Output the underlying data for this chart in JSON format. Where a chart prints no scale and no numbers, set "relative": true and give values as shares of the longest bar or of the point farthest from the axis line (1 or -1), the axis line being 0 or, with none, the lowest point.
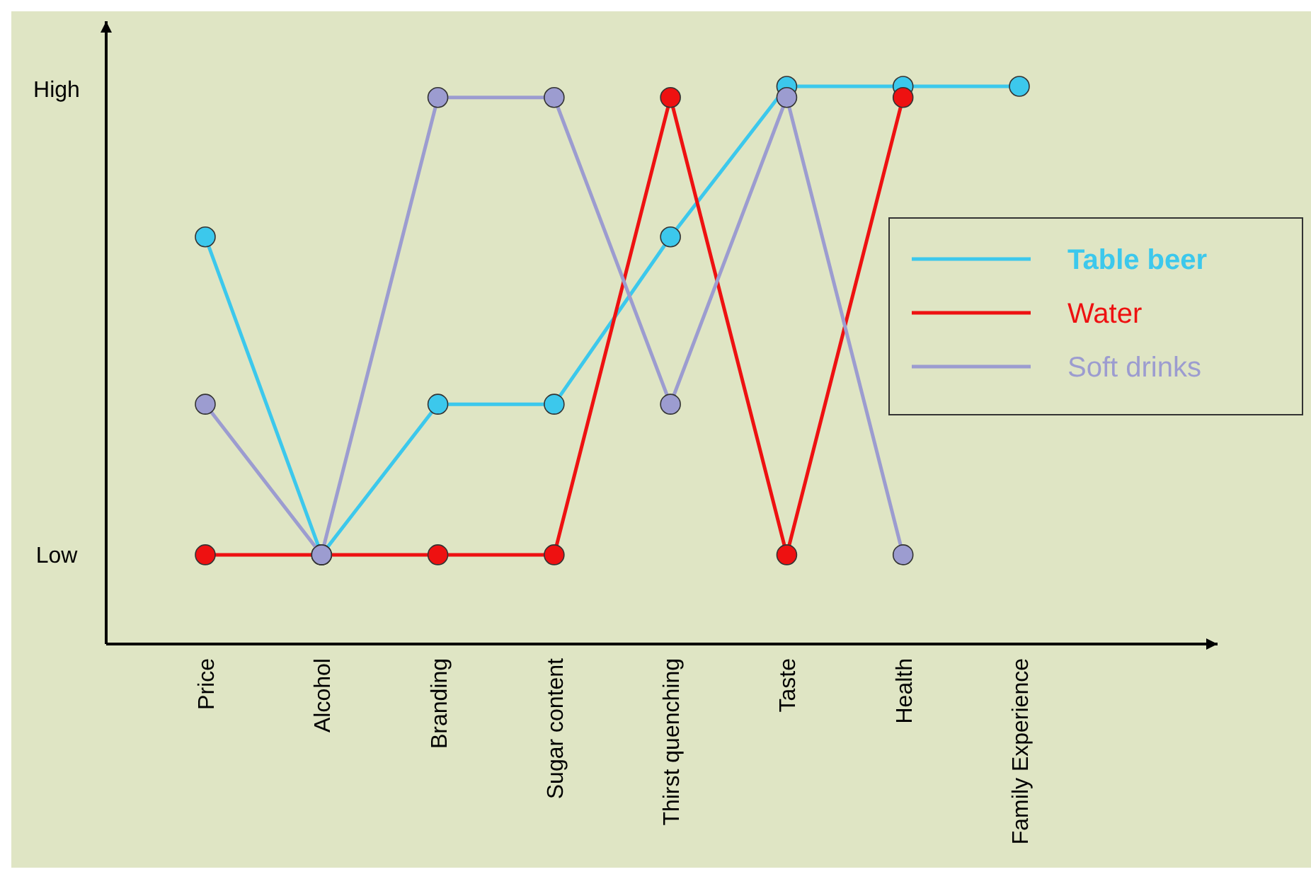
{
  "chart_data": {
    "type": "line",
    "relative": true,
    "categories": [
      "Price",
      "Alcohol",
      "Branding",
      "Sugar content",
      "Thirst quenching",
      "Taste",
      "Health",
      "Family Experience"
    ],
    "series": [
      {
        "name": "Table beer",
        "color": "#3cc8ec",
        "values": [
          0.73,
          0.16,
          0.43,
          0.43,
          0.73,
          1,
          1,
          1
        ]
      },
      {
        "name": "Water",
        "color": "#ee1111",
        "values": [
          0.16,
          0.16,
          0.16,
          0.16,
          0.98,
          0.16,
          0.98,
          null
        ]
      },
      {
        "name": "Soft drinks",
        "color": "#9c9cd0",
        "values": [
          0.43,
          0.16,
          0.98,
          0.98,
          0.43,
          0.98,
          0.16,
          null
        ]
      }
    ],
    "annotations": [
      "High",
      "Low"
    ],
    "marker": "circle",
    "line_style": "solid",
    "legend": "right"
  }
}
